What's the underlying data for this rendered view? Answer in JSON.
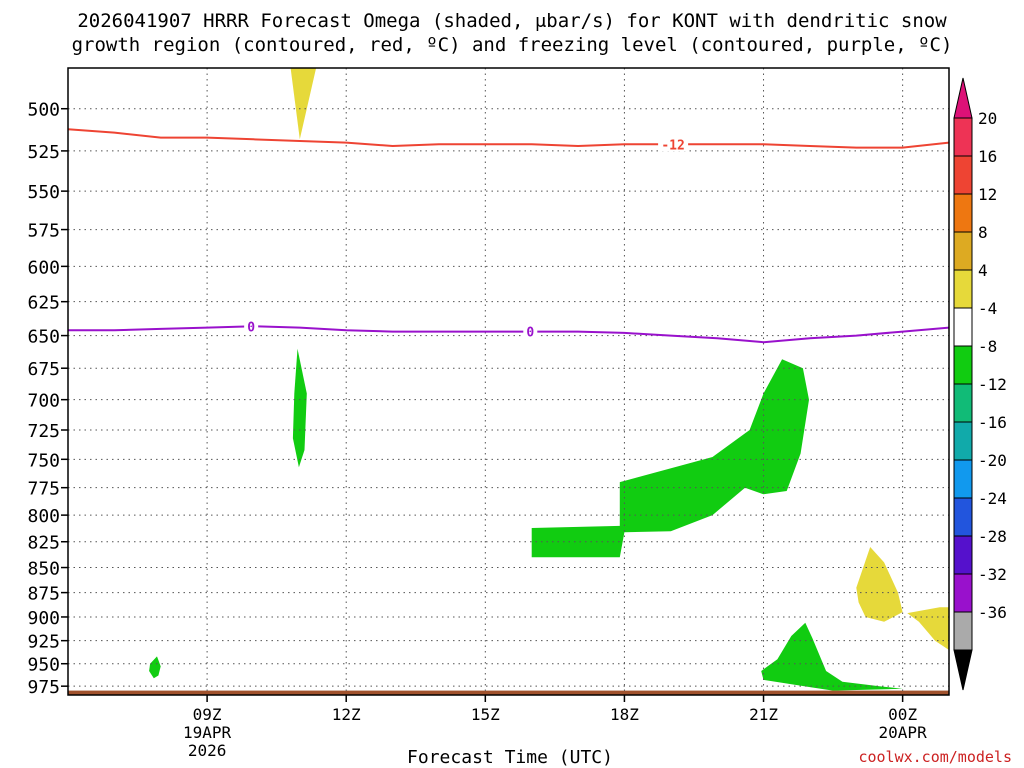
{
  "title_line1": "2026041907 HRRR Forecast Omega (shaded, μbar/s) for KONT with dendritic snow",
  "title_line2": "growth region (contoured, red, ºC) and freezing level (contoured, purple, ºC)",
  "credit": "coolwx.com/models",
  "chart_data": {
    "type": "heatmap",
    "xlabel": "Forecast Time (UTC)",
    "ylabel": "",
    "x_range_hours": [
      6,
      25
    ],
    "y_range_hpa": [
      477,
      985
    ],
    "y_log_pressure_axis": true,
    "grid": true,
    "x_ticks": [
      {
        "hour": 9,
        "label": "09Z",
        "sub1": "19APR",
        "sub2": "2026"
      },
      {
        "hour": 12,
        "label": "12Z",
        "sub1": "",
        "sub2": ""
      },
      {
        "hour": 15,
        "label": "15Z",
        "sub1": "",
        "sub2": ""
      },
      {
        "hour": 18,
        "label": "18Z",
        "sub1": "",
        "sub2": ""
      },
      {
        "hour": 21,
        "label": "21Z",
        "sub1": "",
        "sub2": ""
      },
      {
        "hour": 24,
        "label": "00Z",
        "sub1": "20APR",
        "sub2": ""
      }
    ],
    "y_ticks": [
      500,
      525,
      550,
      575,
      600,
      625,
      650,
      675,
      700,
      725,
      750,
      775,
      800,
      825,
      850,
      875,
      900,
      925,
      950,
      975
    ],
    "contours": [
      {
        "name": "-12",
        "color": "#ee4433",
        "points": [
          [
            6,
            512
          ],
          [
            7,
            514
          ],
          [
            8,
            517
          ],
          [
            9,
            517
          ],
          [
            10,
            518
          ],
          [
            11,
            519
          ],
          [
            12,
            520
          ],
          [
            13,
            522
          ],
          [
            14,
            521
          ],
          [
            15,
            521
          ],
          [
            16,
            521
          ],
          [
            17,
            522
          ],
          [
            18,
            521
          ],
          [
            19,
            521
          ],
          [
            20,
            521
          ],
          [
            21,
            521
          ],
          [
            22,
            522
          ],
          [
            23,
            523
          ],
          [
            24,
            523
          ],
          [
            25,
            520
          ]
        ],
        "labels": [
          {
            "hour": 19.05,
            "text": "-12"
          }
        ]
      },
      {
        "name": "0",
        "color": "#9911cc",
        "points": [
          [
            6,
            646
          ],
          [
            7,
            646
          ],
          [
            8,
            645
          ],
          [
            9,
            644
          ],
          [
            10,
            643
          ],
          [
            11,
            644
          ],
          [
            12,
            646
          ],
          [
            13,
            647
          ],
          [
            14,
            647
          ],
          [
            15,
            647
          ],
          [
            16,
            647
          ],
          [
            17,
            647
          ],
          [
            18,
            648
          ],
          [
            19,
            650
          ],
          [
            20,
            652
          ],
          [
            21,
            655
          ],
          [
            22,
            652
          ],
          [
            23,
            650
          ],
          [
            24,
            647
          ],
          [
            25,
            644
          ]
        ],
        "labels": [
          {
            "hour": 9.95,
            "text": "0"
          },
          {
            "hour": 15.97,
            "text": "0"
          }
        ]
      }
    ],
    "shaded_regions": [
      {
        "value_range": [
          4,
          8
        ],
        "color": "#e6d93a",
        "points": [
          [
            10.8,
            477
          ],
          [
            11.35,
            477
          ],
          [
            11.0,
            518
          ]
        ]
      },
      {
        "value_range": [
          -8,
          -4
        ],
        "color": "#11cc11",
        "points": [
          [
            10.95,
            660
          ],
          [
            11.15,
            695
          ],
          [
            11.1,
            742
          ],
          [
            10.98,
            757
          ],
          [
            10.85,
            732
          ],
          [
            10.88,
            695
          ]
        ]
      },
      {
        "value_range": [
          -8,
          -4
        ],
        "color": "#11cc11",
        "points": [
          [
            16.0,
            812
          ],
          [
            17.9,
            810
          ],
          [
            17.9,
            770
          ],
          [
            19.9,
            748
          ],
          [
            20.7,
            725
          ],
          [
            21.0,
            695
          ],
          [
            21.4,
            668
          ],
          [
            21.85,
            675
          ],
          [
            21.98,
            700
          ],
          [
            21.8,
            745
          ],
          [
            21.5,
            778
          ],
          [
            21.0,
            781
          ],
          [
            20.6,
            775
          ],
          [
            19.9,
            800
          ],
          [
            19.0,
            815
          ],
          [
            18.0,
            816
          ],
          [
            17.9,
            840
          ],
          [
            16.0,
            840
          ]
        ]
      },
      {
        "value_range": [
          4,
          8
        ],
        "color": "#e6d93a",
        "points": [
          [
            23.0,
            870
          ],
          [
            23.3,
            830
          ],
          [
            23.6,
            845
          ],
          [
            23.9,
            875
          ],
          [
            24.0,
            895
          ],
          [
            23.6,
            905
          ],
          [
            23.2,
            900
          ],
          [
            23.05,
            885
          ]
        ]
      },
      {
        "value_range": [
          4,
          8
        ],
        "color": "#e6d93a",
        "points": [
          [
            24.1,
            896
          ],
          [
            24.8,
            890
          ],
          [
            25.0,
            890
          ],
          [
            25.0,
            935
          ],
          [
            24.7,
            925
          ],
          [
            24.35,
            905
          ]
        ]
      },
      {
        "value_range": [
          -8,
          -4
        ],
        "color": "#11cc11",
        "points": [
          [
            7.77,
            950
          ],
          [
            7.92,
            942
          ],
          [
            8.0,
            953
          ],
          [
            7.95,
            963
          ],
          [
            7.85,
            966
          ],
          [
            7.75,
            958
          ]
        ]
      },
      {
        "value_range": [
          -8,
          -4
        ],
        "color": "#11cc11",
        "points": [
          [
            20.95,
            958
          ],
          [
            21.3,
            945
          ],
          [
            21.6,
            920
          ],
          [
            21.9,
            906
          ],
          [
            22.05,
            922
          ],
          [
            22.35,
            958
          ],
          [
            22.7,
            970
          ],
          [
            23.5,
            975
          ],
          [
            24.0,
            978
          ],
          [
            22.5,
            980
          ],
          [
            22.0,
            976
          ],
          [
            21.0,
            968
          ]
        ]
      }
    ],
    "terrain": {
      "color": "#a0522d",
      "top_hpa": 980
    },
    "colorbar": {
      "labels": [
        "20",
        "16",
        "12",
        "8",
        "4",
        "-4",
        "-8",
        "-12",
        "-16",
        "-20",
        "-24",
        "-28",
        "-32",
        "-36"
      ],
      "colors": [
        "#ee3355",
        "#ee4433",
        "#ee7711",
        "#ddaa22",
        "#e6d93a",
        "#ffffff",
        "#11cc11",
        "#11bb77",
        "#11aaaa",
        "#1199ee",
        "#2255dd",
        "#5511cc",
        "#9911cc",
        "#aaaaaa"
      ],
      "top_cap_color": "#dd1177",
      "bottom_cap_color": "#000000"
    }
  }
}
